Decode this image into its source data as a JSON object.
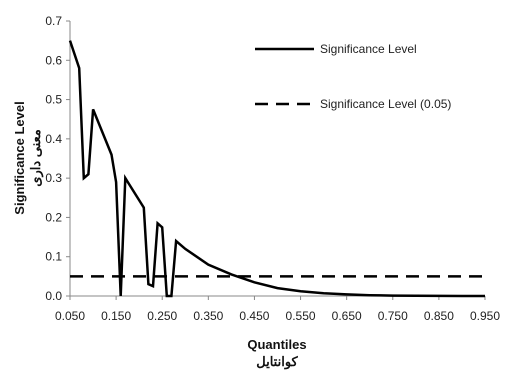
{
  "chart_data": {
    "type": "line",
    "x": [
      0.05,
      0.07,
      0.08,
      0.09,
      0.1,
      0.14,
      0.15,
      0.16,
      0.17,
      0.21,
      0.22,
      0.23,
      0.24,
      0.25,
      0.26,
      0.27,
      0.28,
      0.3,
      0.35,
      0.4,
      0.45,
      0.5,
      0.55,
      0.6,
      0.65,
      0.7,
      0.75,
      0.8,
      0.85,
      0.9,
      0.95
    ],
    "series": [
      {
        "name": "Significance Level",
        "style": "solid",
        "values": [
          0.65,
          0.58,
          0.3,
          0.31,
          0.475,
          0.36,
          0.29,
          0.0,
          0.3,
          0.225,
          0.03,
          0.025,
          0.185,
          0.175,
          0.0,
          0.0,
          0.14,
          0.12,
          0.08,
          0.055,
          0.035,
          0.02,
          0.012,
          0.007,
          0.004,
          0.002,
          0.001,
          0.0005,
          0.0002,
          0.0001,
          0.0
        ]
      },
      {
        "name": "Significance Level (0.05)",
        "style": "dashed",
        "values": [
          0.05,
          0.05,
          0.05,
          0.05,
          0.05,
          0.05,
          0.05,
          0.05,
          0.05,
          0.05,
          0.05,
          0.05,
          0.05,
          0.05,
          0.05,
          0.05,
          0.05,
          0.05,
          0.05,
          0.05,
          0.05,
          0.05,
          0.05,
          0.05,
          0.05,
          0.05,
          0.05,
          0.05,
          0.05,
          0.05,
          0.05
        ]
      }
    ],
    "x_ticks": [
      "0.050",
      "0.150",
      "0.250",
      "0.350",
      "0.450",
      "0.550",
      "0.650",
      "0.750",
      "0.850",
      "0.950"
    ],
    "y_ticks": [
      "0.0",
      "0.1",
      "0.2",
      "0.3",
      "0.4",
      "0.5",
      "0.6",
      "0.7"
    ],
    "xlim": [
      0.05,
      0.95
    ],
    "ylim": [
      0.0,
      0.7
    ],
    "xlabel": "Quantiles",
    "xlabel_secondary": "کوانتایل",
    "ylabel": "Significance Level",
    "ylabel_secondary": "معنی داری",
    "grid": false,
    "legend_position": "top-right",
    "colors": {
      "line": "#000000",
      "axis": "#888888",
      "text": "#222222"
    }
  }
}
